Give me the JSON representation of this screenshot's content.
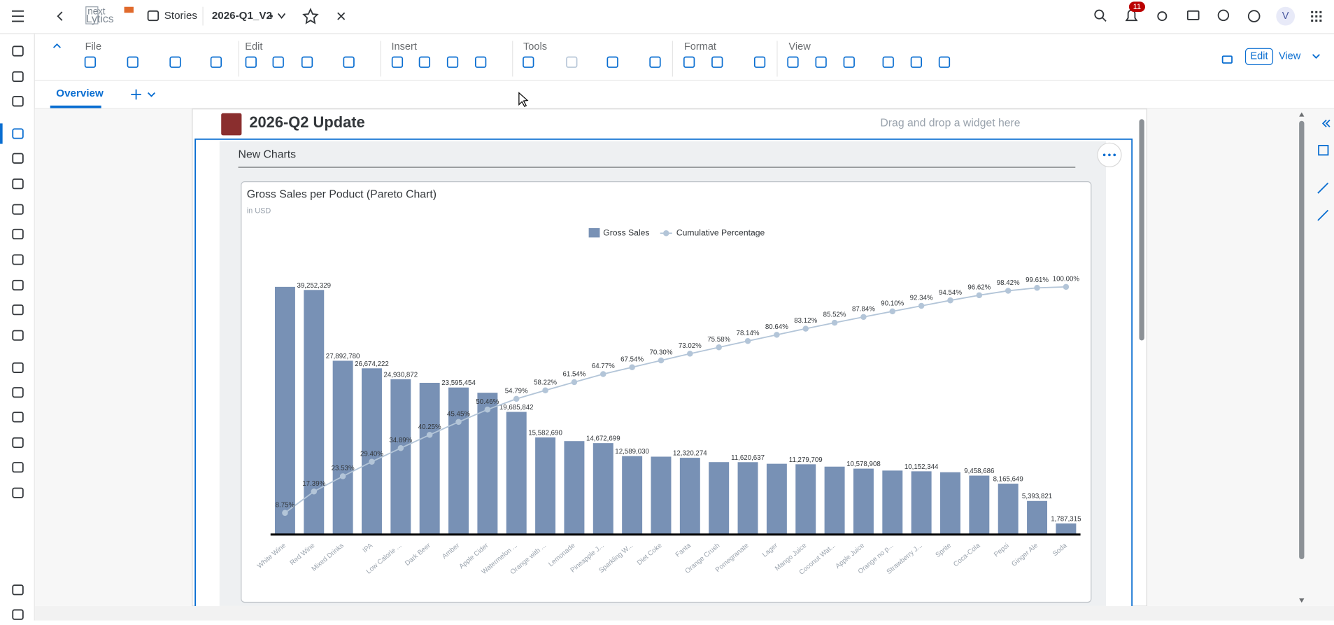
{
  "top_bar": {
    "logo": [
      "next",
      "Lytics"
    ],
    "app": "Stories",
    "story_name": "2026-Q1_V2",
    "notifications": "11",
    "avatar": "V"
  },
  "toolbar": {
    "groups": [
      "File",
      "Edit",
      "Insert",
      "Tools",
      "Format",
      "View"
    ],
    "mode_buttons": [
      "Edit",
      "View"
    ]
  },
  "tabs": [
    "Overview"
  ],
  "page": {
    "title": "2026-Q2 Update",
    "drop_hint": "Drag and drop a widget here",
    "panel_title": "New Charts"
  },
  "chart_data": {
    "type": "pareto",
    "title": "Gross Sales per Poduct (Pareto Chart)",
    "subtitle": "in USD",
    "categories": [
      "White Wine",
      "Red Wine",
      "Mixed Drinks",
      "IPA",
      "Low Calorie ...",
      "Dark Beer",
      "Amber",
      "Apple Cider",
      "Watermelon ...",
      "Orange with ...",
      "Lemonade",
      "Pineapple J...",
      "Sparkling W...",
      "Diet Coke",
      "Fanta",
      "Orange Crush",
      "Pomegranate",
      "Lager",
      "Mango Juice",
      "Coconut Wat...",
      "Apple Juice",
      "Orange no p...",
      "Strawberry J...",
      "Sprite",
      "Coca-Cola",
      "Pepsi",
      "Ginger Ale",
      "Soda"
    ],
    "series": [
      {
        "name": "Gross Sales",
        "type": "bar",
        "color": "#7891b5",
        "values": [
          39750000,
          39252329,
          27892780,
          26674222,
          24930872,
          24350000,
          23595454,
          22760000,
          19685842,
          15582690,
          15000000,
          14672699,
          12589030,
          12500000,
          12320274,
          11630000,
          11620637,
          11360000,
          11279709,
          10900000,
          10578908,
          10270000,
          10152344,
          10000000,
          9458686,
          8165649,
          5393821,
          1787315
        ],
        "value_labels": [
          null,
          "39,252,329",
          "27,892,780",
          "26,674,222",
          "24,930,872",
          null,
          "23,595,454",
          null,
          "19,685,842",
          "15,582,690",
          null,
          "14,672,699",
          "12,589,030",
          null,
          "12,320,274",
          null,
          "11,620,637",
          null,
          "11,279,709",
          null,
          "10,578,908",
          null,
          "10,152,344",
          null,
          "9,458,686",
          "8,165,649",
          "5,393,821",
          "1,787,315"
        ]
      },
      {
        "name": "Cumulative Percentage",
        "type": "line",
        "color": "#b3c5d8",
        "values": [
          8.75,
          17.39,
          23.53,
          29.4,
          34.89,
          40.25,
          45.45,
          50.46,
          54.79,
          58.22,
          61.54,
          64.77,
          67.54,
          70.3,
          73.02,
          75.58,
          78.14,
          80.64,
          83.12,
          85.52,
          87.84,
          90.1,
          92.34,
          94.54,
          96.62,
          98.42,
          99.61,
          100.0
        ],
        "value_labels": [
          "8.75%",
          "17.39%",
          "23.53%",
          "29.40%",
          "34.89%",
          "40.25%",
          "45.45%",
          "50.46%",
          "54.79%",
          "58.22%",
          "61.54%",
          "64.77%",
          "67.54%",
          "70.30%",
          "73.02%",
          "75.58%",
          "78.14%",
          "80.64%",
          "83.12%",
          "85.52%",
          "87.84%",
          "90.10%",
          "92.34%",
          "94.54%",
          "96.62%",
          "98.42%",
          "99.61%",
          "100.00%"
        ]
      }
    ]
  }
}
